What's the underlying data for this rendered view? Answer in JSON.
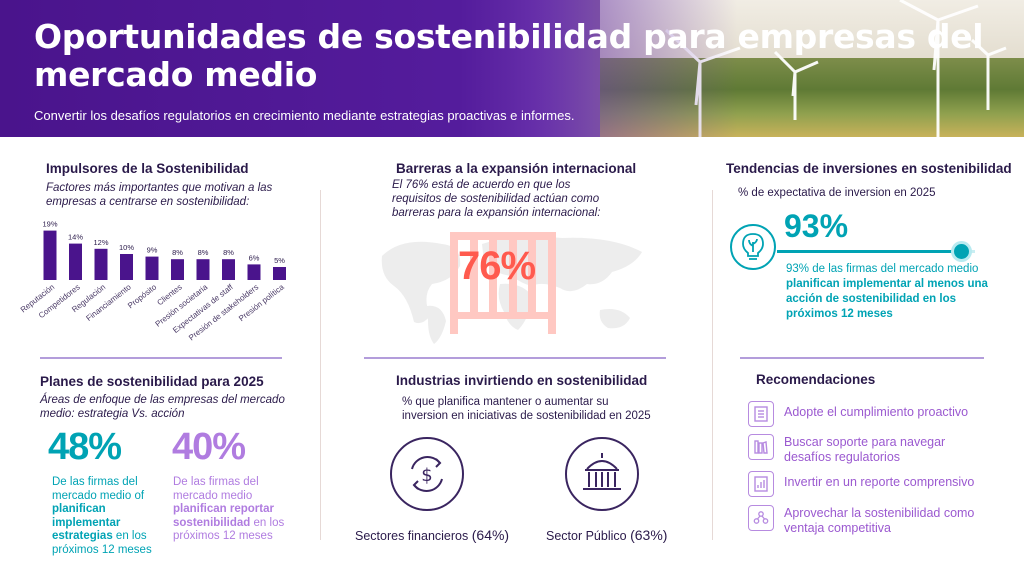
{
  "banner": {
    "title": "Oportunidades de sostenibilidad para empresas del mercado medio",
    "subtitle": "Convertir los desafíos regulatorios en crecimiento mediante estrategias proactivas e informes."
  },
  "drivers": {
    "title": "Impulsores de la Sostenibilidad",
    "description": "Factores más importantes que motivan a las empresas a centrarse en sostenibilidad:"
  },
  "chart_data": {
    "type": "bar",
    "categories": [
      "Reputación",
      "Competidores",
      "Regulación",
      "Financiamiento",
      "Propósito",
      "Clientes",
      "Presión societaria",
      "Expectativas de staff",
      "Presión de stakeholders",
      "Presión política"
    ],
    "values": [
      19,
      14,
      12,
      10,
      9,
      8,
      8,
      8,
      6,
      5
    ],
    "value_labels": [
      "19%",
      "14%",
      "12%",
      "10%",
      "9%",
      "8%",
      "8%",
      "8%",
      "6%",
      "5%"
    ],
    "unit": "%",
    "ylim": [
      0,
      20
    ],
    "color": "#4a148c",
    "grid": false
  },
  "barriers": {
    "title": "Barreras a la expansión internacional",
    "description": "El 76% está de acuerdo en que los requisitos de sostenibilidad actúan como barreras para la expansión internacional:",
    "value": "76%",
    "value_color": "#ff5a4e"
  },
  "trends": {
    "title": "Tendencias de inversiones en sostenibilidad",
    "description": "% de expectativa de inversion en 2025",
    "value": "93%",
    "progress": 0.93,
    "text_prefix": "93% de las firmas del mercado medio ",
    "text_bold": "planifican implementar al menos una acción de sostenibilidad en los próximos 12 meses",
    "accent": "#00a3b4",
    "icon": "lightbulb-leaf-icon"
  },
  "plans": {
    "title": "Planes de sostenibilidad para 2025",
    "description": "Áreas de enfoque de las empresas del mercado medio: estrategia Vs. acción",
    "stat1": {
      "value": "48%",
      "text_prefix": "De las firmas del mercado medio of ",
      "text_bold": "planifican implementar estrategias",
      "text_suffix": " en los próximos 12 meses",
      "color": "#00a3b4"
    },
    "stat2": {
      "value": "40%",
      "text_prefix": "De las firmas del mercado medio ",
      "text_bold": "planifican reportar sostenibilidad",
      "text_suffix": " en los próximos 12 meses",
      "color": "#b07ce0"
    }
  },
  "industries": {
    "title": "Industrias invirtiendo en sostenibilidad",
    "description": "% que planifica mantener o aumentar su inversion en iniciativas de sostenibilidad en 2025",
    "items": [
      {
        "label": "Sectores financieros",
        "value": "(64%)",
        "icon": "dollar-cycle-icon"
      },
      {
        "label": "Sector Público",
        "value": "(63%)",
        "icon": "government-building-icon"
      }
    ]
  },
  "recommendations": {
    "title": "Recomendaciones",
    "items": [
      {
        "label": "Adopte el cumplimiento proactivo",
        "icon": "document-checklist-icon"
      },
      {
        "label": "Buscar soporte para navegar desafíos regulatorios",
        "icon": "books-icon"
      },
      {
        "label": "Invertir en un reporte comprensivo",
        "icon": "report-chart-icon"
      },
      {
        "label": "Aprovechar la sostenibilidad como ventaja competitiva",
        "icon": "people-network-icon"
      }
    ],
    "color": "#9b59d0"
  }
}
